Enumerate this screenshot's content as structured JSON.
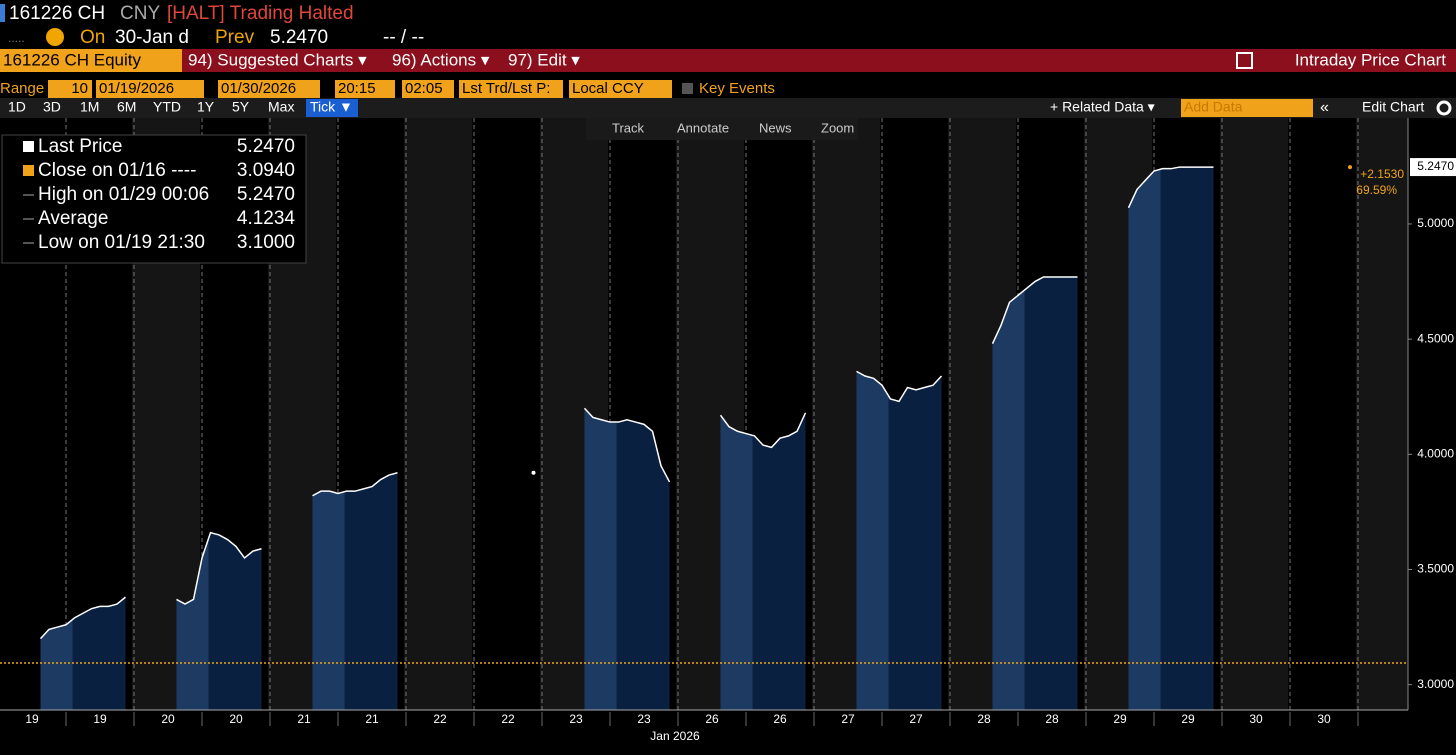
{
  "header": {
    "ticker": "161226 CH",
    "currency": "CNY",
    "status": "[HALT] Trading Halted",
    "dots": ".....",
    "on_label": "On",
    "date": "30-Jan d",
    "prev_label": "Prev",
    "prev": "5.2470",
    "bid_ask": "-- / --"
  },
  "menu": {
    "security": "161226 CH Equity",
    "items": [
      "94) Suggested Charts ▾",
      "96) Actions ▾",
      "97) Edit ▾"
    ],
    "title": "Intraday Price Chart"
  },
  "controls": {
    "range_label": "Range",
    "range_count": "10",
    "start_date": "01/19/2026",
    "end_date": "01/30/2026",
    "start_time": "20:15",
    "end_time": "02:05",
    "field": "Lst Trd/Lst P:",
    "currency": "Local CCY",
    "key_events": "Key Events"
  },
  "periods": [
    "1D",
    "3D",
    "1M",
    "6M",
    "YTD",
    "1Y",
    "5Y",
    "Max",
    "Tick ▼"
  ],
  "chart_tools": [
    "Track",
    "Annotate",
    "News",
    "Zoom"
  ],
  "right_tools": {
    "related": "+ Related Data ▾",
    "add_data": "Add Data",
    "collapse": "«",
    "edit": "Edit Chart"
  },
  "chart_data": {
    "type": "line",
    "x_label": "Jan 2026",
    "categories": [
      "19",
      null,
      null,
      null,
      null,
      null,
      null,
      null,
      "19",
      null,
      null,
      null,
      null,
      null,
      null,
      null,
      "20",
      null,
      null,
      null,
      null,
      null,
      null,
      null,
      "20",
      null,
      null,
      null,
      null,
      null,
      null,
      null,
      "21",
      null,
      null,
      null,
      null,
      null,
      null,
      null,
      "21",
      null,
      null,
      null,
      null,
      null,
      null,
      null,
      "22",
      null,
      null,
      null,
      null,
      null,
      null,
      null,
      "22",
      null,
      null,
      null,
      null,
      null,
      null,
      null,
      "23",
      null,
      null,
      null,
      null,
      null,
      null,
      null,
      "23",
      null,
      null,
      null,
      null,
      null,
      null,
      null,
      "26",
      null,
      null,
      null,
      null,
      null,
      null,
      null,
      "26",
      null,
      null,
      null,
      null,
      null,
      null,
      null,
      "27",
      null,
      null,
      null,
      null,
      null,
      null,
      null,
      "27",
      null,
      null,
      null,
      null,
      null,
      null,
      null,
      "28",
      null,
      null,
      null,
      null,
      null,
      null,
      null,
      "28",
      null,
      null,
      null,
      null,
      null,
      null,
      null,
      "29",
      null,
      null,
      null,
      null,
      null,
      null,
      null,
      "29",
      null,
      null,
      null,
      null,
      null,
      null,
      null,
      "30",
      null,
      null,
      null,
      null,
      null,
      null,
      null,
      "30",
      null,
      null,
      null,
      null,
      null,
      null,
      null
    ],
    "series": [
      {
        "name": "Last Price",
        "color": "#ffffff",
        "values": [
          null,
          3.2,
          3.24,
          3.25,
          3.26,
          3.29,
          3.31,
          3.33,
          3.34,
          3.34,
          3.35,
          3.38,
          null,
          null,
          null,
          null,
          null,
          3.37,
          3.35,
          3.37,
          3.55,
          3.66,
          3.65,
          3.63,
          3.6,
          3.55,
          3.58,
          3.59,
          null,
          null,
          null,
          null,
          null,
          3.82,
          3.84,
          3.84,
          3.83,
          3.84,
          3.84,
          3.85,
          3.86,
          3.89,
          3.91,
          3.92,
          null,
          null,
          null,
          null,
          null,
          null,
          null,
          null,
          null,
          null,
          null,
          null,
          null,
          null,
          null,
          3.92,
          null,
          null,
          null,
          null,
          null,
          4.2,
          4.16,
          4.15,
          4.14,
          4.14,
          4.15,
          4.14,
          4.13,
          4.1,
          3.95,
          3.88,
          null,
          null,
          null,
          null,
          null,
          4.17,
          4.12,
          4.1,
          4.09,
          4.08,
          4.04,
          4.03,
          4.07,
          4.08,
          4.1,
          4.18,
          null,
          null,
          null,
          null,
          null,
          4.36,
          4.34,
          4.33,
          4.3,
          4.24,
          4.23,
          4.29,
          4.28,
          4.29,
          4.3,
          4.34,
          null,
          null,
          null,
          null,
          null,
          4.48,
          4.56,
          4.66,
          4.69,
          4.72,
          4.75,
          4.77,
          4.77,
          4.77,
          4.77,
          4.77,
          null,
          null,
          null,
          null,
          null,
          5.07,
          5.15,
          5.19,
          5.23,
          5.24,
          5.24,
          5.247,
          5.247,
          5.247,
          5.247,
          5.247,
          null,
          null,
          null,
          null,
          null,
          null,
          null,
          null,
          null,
          null,
          null,
          null,
          null,
          null,
          null,
          null,
          null,
          null,
          null,
          null
        ]
      }
    ],
    "legend": [
      {
        "name": "Last Price",
        "value": 5.247,
        "value_label": "5.2470",
        "color": "#ffffff"
      },
      {
        "name": "Close on 01/16 ----",
        "value": 3.094,
        "value_label": "3.0940",
        "color": "#f0a21a"
      },
      {
        "name": "High on 01/29 00:06",
        "value": 5.247,
        "value_label": "5.2470"
      },
      {
        "name": "Average",
        "value": 4.1234,
        "value_label": "4.1234"
      },
      {
        "name": "Low on 01/19 21:30",
        "value": 3.1,
        "value_label": "3.1000"
      }
    ],
    "change": {
      "value": 2.153,
      "label": "+2.1530"
    },
    "change_pct": {
      "value": 69.59,
      "label": "69.59%"
    },
    "ylim": [
      2.89,
      5.46
    ],
    "yticks": [
      {
        "value": 3,
        "label": "3.0000"
      },
      {
        "value": 3.5,
        "label": "3.5000"
      },
      {
        "value": 4,
        "label": "4.0000"
      },
      {
        "value": 4.5,
        "label": "4.5000"
      },
      {
        "value": 5,
        "label": "5.0000"
      }
    ]
  }
}
